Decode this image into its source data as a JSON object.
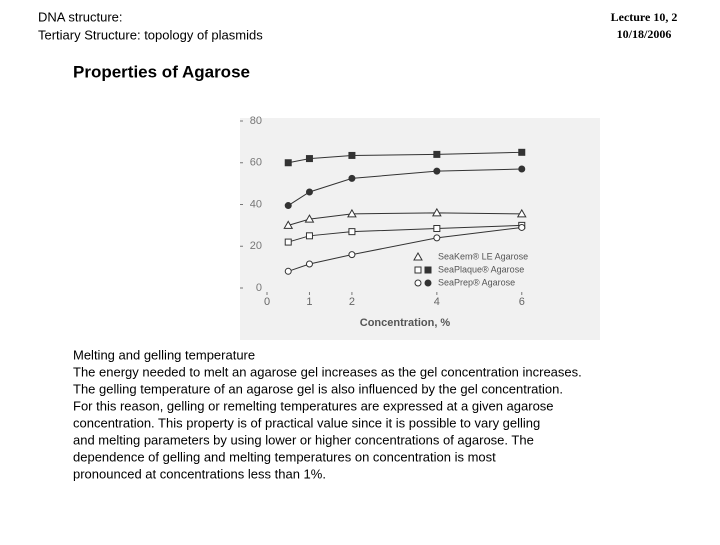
{
  "header": {
    "topic": [
      "DNA structure:",
      "Tertiary  Structure: topology of plasmids"
    ],
    "lecture": [
      "Lecture 10, 2",
      "10/18/2006"
    ]
  },
  "title": "Properties of Agarose",
  "body": [
    "Melting and gelling temperature",
    "The energy needed to melt an agarose gel increases as the gel concentration increases.",
    "The gelling temperature of an agarose gel is also influenced by the gel concentration.",
    "For this reason, gelling or remelting temperatures are expressed at a given agarose",
    "concentration. This property is of practical value since it is possible to vary gelling",
    "and melting parameters by using lower or higher concentrations of agarose. The",
    "dependence of gelling and melting temperatures on concentration is most",
    "pronounced at concentrations less than 1%."
  ],
  "chart_data": {
    "type": "scatter-line",
    "xlabel": "Concentration, %",
    "xlim": [
      0,
      6.5
    ],
    "xticks": [
      0,
      1,
      2,
      4,
      6
    ],
    "ylim": [
      0,
      80
    ],
    "yticks": [
      0,
      20,
      40,
      60,
      80
    ],
    "legend": [
      "SeaKem® LE Agarose",
      "SeaPlaque® Agarose",
      "SeaPrep® Agarose"
    ],
    "series": [
      {
        "legend_index": 0,
        "marker": "triangle",
        "filled": false,
        "color": "#333333",
        "x": [
          0.5,
          1,
          2,
          4,
          6
        ],
        "values": [
          30,
          33,
          35.5,
          36,
          35.5
        ]
      },
      {
        "legend_index": 1,
        "marker": "square",
        "filled": false,
        "color": "#333333",
        "x": [
          0.5,
          1,
          2,
          4,
          6
        ],
        "values": [
          22,
          25,
          27,
          28.5,
          30
        ]
      },
      {
        "legend_index": 1,
        "marker": "square",
        "filled": true,
        "color": "#333333",
        "x": [
          0.5,
          1,
          2,
          4,
          6
        ],
        "values": [
          60,
          62,
          63.5,
          64,
          65
        ]
      },
      {
        "legend_index": 2,
        "marker": "circle",
        "filled": false,
        "color": "#333333",
        "x": [
          0.5,
          1,
          2,
          4,
          6
        ],
        "values": [
          8,
          11.5,
          16,
          24,
          29
        ]
      },
      {
        "legend_index": 2,
        "marker": "circle",
        "filled": true,
        "color": "#333333",
        "x": [
          0.5,
          1,
          2,
          4,
          6
        ],
        "values": [
          39.5,
          46,
          52.5,
          56,
          57
        ]
      }
    ]
  }
}
